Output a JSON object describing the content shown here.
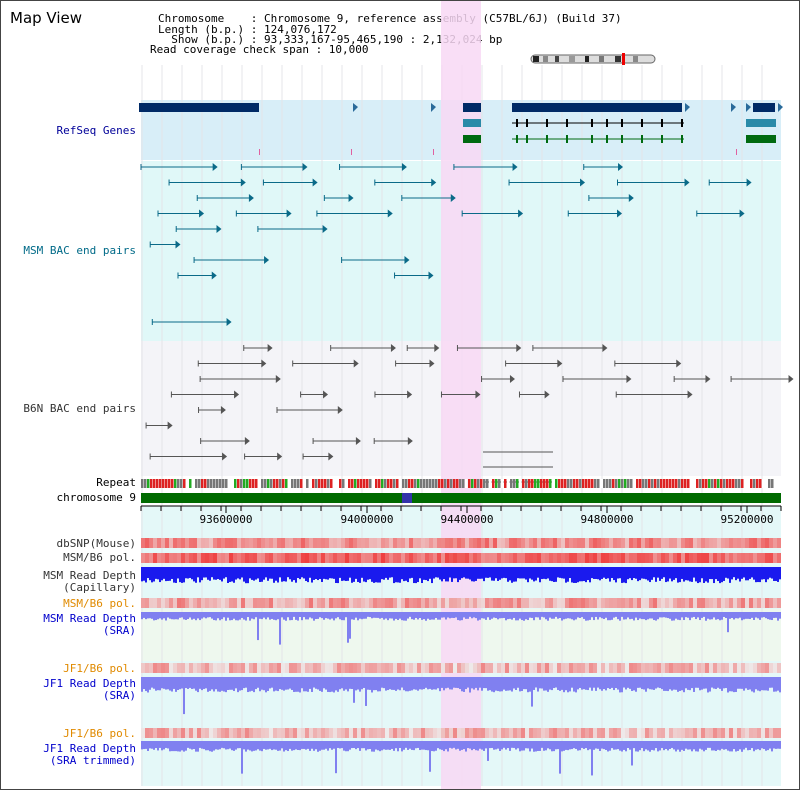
{
  "view_title": "Map View",
  "header": {
    "line1": "Chromosome    : Chromosome 9, reference assembly (C57BL/6J) (Build 37)",
    "line2": "Length (b.p.) : 124,076,172",
    "line3": "  Show (b.p.) : 93,333,167-95,465,190 : 2,132,024 bp",
    "line4": "Read coverage check span : 10,000"
  },
  "tracks": {
    "refseq": "RefSeq Genes",
    "msm_bac": "MSM BAC end pairs",
    "b6n_bac": "B6N BAC end pairs",
    "repeat": "Repeat",
    "chromosome": "chromosome 9",
    "dbsnp": "dbSNP(Mouse)",
    "msm_b6_pol": "MSM/B6 pol.",
    "msm_read_depth_cap_1": "MSM Read Depth",
    "msm_read_depth_cap_2": "(Capillary)",
    "msm_b6_pol_2": "MSM/B6 pol.",
    "msm_read_depth_sra_1": "MSM Read Depth",
    "msm_read_depth_sra_2": "(SRA)",
    "jf1_b6_pol": "JF1/B6 pol.",
    "jf1_read_depth_sra_1": "JF1 Read Depth",
    "jf1_read_depth_sra_2": "(SRA)",
    "jf1_b6_pol_2": "JF1/B6 pol.",
    "jf1_read_depth_trim_1": "JF1 Read Depth",
    "jf1_read_depth_trim_2": "(SRA trimmed)"
  },
  "axis": {
    "ticks": [
      "93600000",
      "94000000",
      "94400000",
      "94800000",
      "95200000"
    ]
  },
  "colors": {
    "highlight": "#f8d8f4",
    "refseq_bg": "#d8eef8",
    "msm_bg": "#e0f8f8",
    "b6n_bg": "#f4f4f8",
    "navy_gene": "#002a66",
    "teal_gene": "#2a8aa8",
    "green_gene": "#006a10",
    "chrom_green": "#006a00",
    "bac_teal": "#0a6a88",
    "bac_gray": "#555555",
    "snp_red": "#ee3333",
    "depth_blue": "#1a1aee",
    "depth_light": "#8080f0"
  }
}
